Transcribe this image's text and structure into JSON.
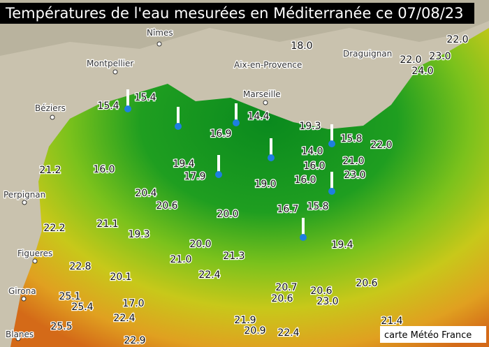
{
  "title": "Températures de l'eau mesurées en Méditerranée ce 07/08/23",
  "cities": [
    "Nîmes",
    "Montpellier",
    "Aix-en-Provence",
    "Marseille",
    "Draguignan",
    "Béziers",
    "Perpignan",
    "Figueres",
    "Girona",
    "Blanes"
  ],
  "temperatures": [
    "15.4",
    "15.4",
    "16.9",
    "14.4",
    "18.0",
    "22.0",
    "23.0",
    "24.0",
    "22.0",
    "19.3",
    "15.8",
    "22.0",
    "14.0",
    "16.0",
    "21.0",
    "23.0",
    "16.0",
    "19.0",
    "16.7",
    "15.8",
    "19.4",
    "17.9",
    "16.0",
    "21.2",
    "20.4",
    "20.6",
    "20.0",
    "21.1",
    "19.3",
    "22.2",
    "20.0",
    "21.0",
    "21.3",
    "19.4",
    "22.8",
    "20.1",
    "22.4",
    "20.7",
    "20.6",
    "20.6",
    "23.0",
    "20.6",
    "25.1",
    "25.4",
    "17.0",
    "22.4",
    "21.9",
    "20.9",
    "22.4",
    "21.4",
    "25.5",
    "22.9"
  ],
  "credit": "carte Météo France"
}
